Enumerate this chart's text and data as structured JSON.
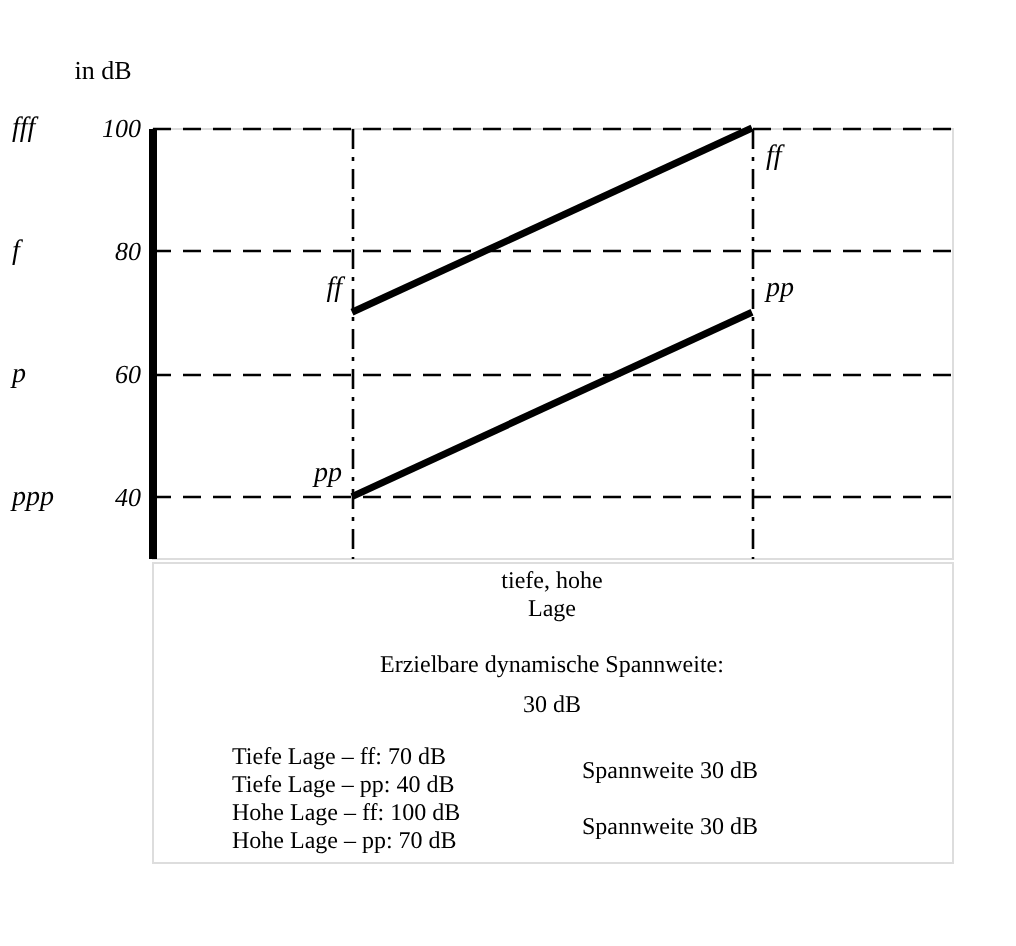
{
  "chart_data": {
    "type": "line",
    "ylabel": "in dB",
    "categories": [
      null,
      null
    ],
    "ylim": [
      30,
      100
    ],
    "yticks": [
      100,
      80,
      60,
      40
    ],
    "tick_labels": "y",
    "grid": true,
    "series": [
      {
        "name": "ff",
        "color": "#000000",
        "values": [
          70,
          100
        ]
      },
      {
        "name": "pp",
        "color": "#000000",
        "values": [
          40,
          70
        ]
      }
    ],
    "annotations": [
      "tiefe, hohe Lage",
      "Erzielbare dynamische Spannweite:",
      "30 dB",
      "Tiefe Lage   – ff:   70 dB",
      "Tiefe Lage   – pp:   40 dB",
      "Hohe Lage   – ff: 100 dB",
      "Hohe Lage   – pp:   70 dB",
      "Spannweite 30 dB",
      "Spannweite 30 dB",
      "fff",
      "f",
      "p",
      "ppp"
    ],
    "marker": "none",
    "line_style": "solid"
  }
}
